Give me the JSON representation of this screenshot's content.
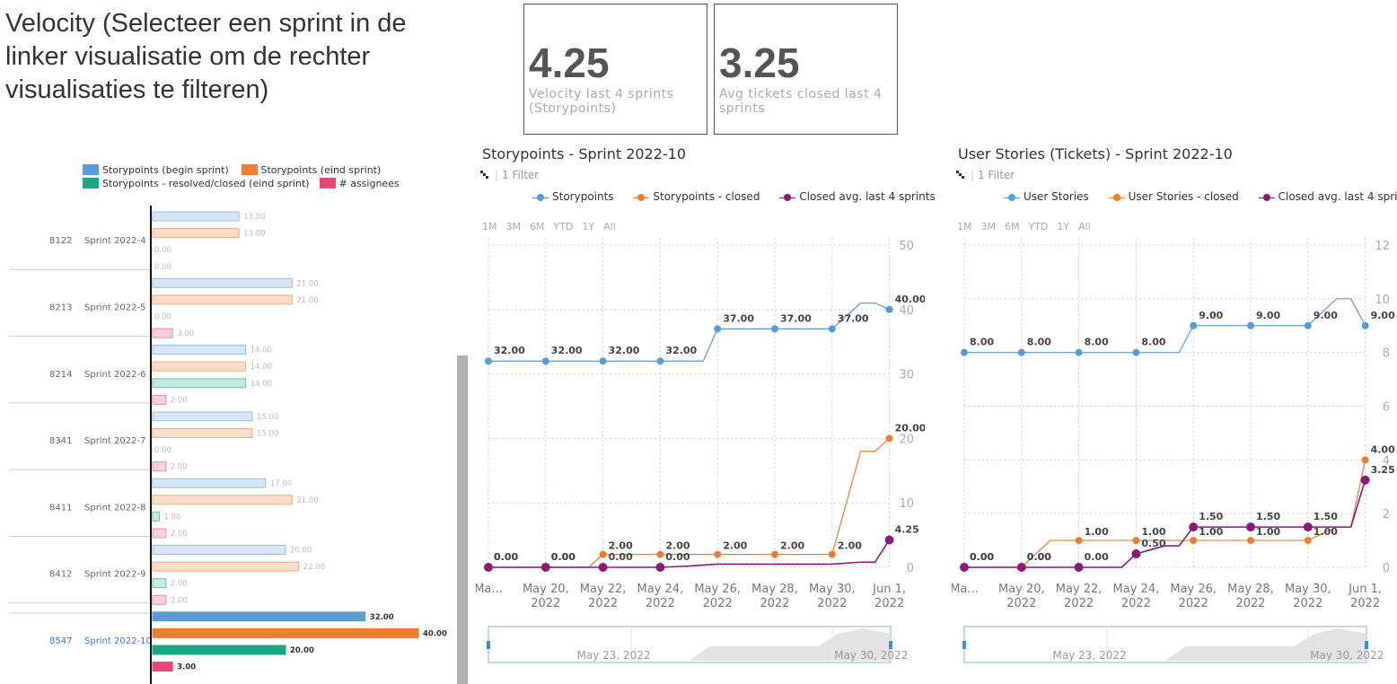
{
  "header": {
    "title": "Velocity  (Selecteer een sprint in de linker visualisatie om de rechter visualisaties te filteren)"
  },
  "kpis": [
    {
      "value": "4.25",
      "label": "Velocity last 4 sprints (Storypoints)"
    },
    {
      "value": "3.25",
      "label": "Avg tickets closed last 4 sprints"
    }
  ],
  "colors": {
    "storypoints_begin": "#5b9bd5",
    "storypoints_end": "#ed7d31",
    "resolved": "#1aa784",
    "assignees": "#e8477a",
    "closed_avg": "#8b1a7b"
  },
  "left_legend": {
    "begin": "Storypoints (begin sprint)",
    "end": "Storypoints (eind sprint)",
    "resolved": "Storypoints - resolved/closed (eind sprint)",
    "assignees": "# assignees"
  },
  "sp_chart": {
    "title": "Storypoints - Sprint 2022-10",
    "filter": "1 Filter",
    "legend": [
      "Storypoints",
      "Storypoints - closed",
      "Closed avg. last 4 sprints"
    ]
  },
  "us_chart": {
    "title": "User Stories (Tickets) - Sprint 2022-10",
    "filter": "1 Filter",
    "legend": [
      "User Stories",
      "User Stories - closed",
      "Closed avg. last 4 sprints"
    ]
  },
  "range_buttons": [
    "1M",
    "3M",
    "6M",
    "YTD",
    "1Y",
    "All"
  ],
  "chart_data": [
    {
      "type": "bar",
      "orientation": "horizontal",
      "selected": "Sprint 2022-10",
      "categories": [
        {
          "id": "8122",
          "sprint": "Sprint 2022-4"
        },
        {
          "id": "8213",
          "sprint": "Sprint 2022-5"
        },
        {
          "id": "8214",
          "sprint": "Sprint 2022-6"
        },
        {
          "id": "8341",
          "sprint": "Sprint 2022-7"
        },
        {
          "id": "8411",
          "sprint": "Sprint 2022-8"
        },
        {
          "id": "8412",
          "sprint": "Sprint 2022-9"
        },
        {
          "id": "8547",
          "sprint": "Sprint 2022-10"
        }
      ],
      "series": [
        {
          "name": "Storypoints (begin sprint)",
          "values": [
            13,
            21,
            14,
            15,
            17,
            20,
            32
          ]
        },
        {
          "name": "Storypoints (eind sprint)",
          "values": [
            13,
            21,
            14,
            15,
            21,
            22,
            40
          ]
        },
        {
          "name": "Storypoints - resolved/closed (eind sprint)",
          "values": [
            0,
            0,
            14,
            0,
            1,
            2,
            20
          ]
        },
        {
          "name": "# assignees",
          "values": [
            0,
            3,
            2,
            2,
            2,
            2,
            3
          ]
        }
      ],
      "xlim": [
        0,
        40
      ]
    },
    {
      "type": "line",
      "title": "Storypoints - Sprint 2022-10",
      "x": [
        "2022-05-18",
        "2022-05-20",
        "2022-05-22",
        "2022-05-24",
        "2022-05-25",
        "2022-05-26",
        "2022-05-28",
        "2022-05-30",
        "2022-05-31",
        "2022-06-01"
      ],
      "x_tick_labels": [
        "Ma...",
        "May 20, 2022",
        "May 22, 2022",
        "May 24, 2022",
        "May 26, 2022",
        "May 28, 2022",
        "May 30, 2022",
        "Jun 1, 2022"
      ],
      "y_ticks": [
        0,
        10,
        20,
        30,
        40,
        50
      ],
      "ylim": [
        0,
        50
      ],
      "series": [
        {
          "name": "Storypoints",
          "values": [
            32,
            32,
            32,
            32,
            32,
            37,
            37,
            37,
            41,
            40
          ],
          "labeled": [
            true,
            true,
            true,
            true,
            false,
            true,
            true,
            true,
            false,
            true
          ]
        },
        {
          "name": "Storypoints - closed",
          "values": [
            0,
            0,
            2,
            2,
            2,
            2,
            2,
            2,
            18,
            20
          ],
          "labeled": [
            true,
            true,
            true,
            true,
            false,
            true,
            true,
            true,
            false,
            true
          ]
        },
        {
          "name": "Closed avg. last 4 sprints",
          "values": [
            0,
            0,
            0,
            0,
            0.2,
            0.5,
            0.5,
            0.5,
            0.8,
            4.25
          ],
          "labeled": [
            true,
            true,
            true,
            true,
            false,
            false,
            false,
            false,
            false,
            true
          ]
        }
      ],
      "navigator_labels": [
        "May 23, 2022",
        "May 30, 2022"
      ]
    },
    {
      "type": "line",
      "title": "User Stories (Tickets) - Sprint 2022-10",
      "x": [
        "2022-05-18",
        "2022-05-20",
        "2022-05-21",
        "2022-05-22",
        "2022-05-24",
        "2022-05-25",
        "2022-05-26",
        "2022-05-28",
        "2022-05-30",
        "2022-05-31",
        "2022-06-01"
      ],
      "x_tick_labels": [
        "Ma...",
        "May 20, 2022",
        "May 22, 2022",
        "May 24, 2022",
        "May 26, 2022",
        "May 28, 2022",
        "May 30, 2022",
        "Jun 1, 2022"
      ],
      "y_ticks": [
        0,
        2,
        4,
        6,
        8,
        10,
        12
      ],
      "ylim": [
        0,
        12
      ],
      "series": [
        {
          "name": "User Stories",
          "values": [
            8,
            8,
            8,
            8,
            8,
            8,
            9,
            9,
            9,
            10,
            9
          ],
          "labeled": [
            true,
            true,
            false,
            true,
            true,
            false,
            true,
            true,
            true,
            false,
            true
          ]
        },
        {
          "name": "User Stories - closed",
          "values": [
            0,
            0,
            1,
            1,
            1,
            1,
            1,
            1,
            1,
            1.5,
            4
          ],
          "labeled": [
            true,
            true,
            false,
            true,
            true,
            false,
            true,
            true,
            true,
            false,
            true
          ]
        },
        {
          "name": "Closed avg. last 4 sprints",
          "values": [
            0,
            0,
            0,
            0,
            0.5,
            0.8,
            1.5,
            1.5,
            1.5,
            1.5,
            3.25
          ],
          "labeled": [
            true,
            true,
            false,
            true,
            true,
            false,
            true,
            true,
            true,
            false,
            true
          ]
        }
      ],
      "navigator_labels": [
        "May 23, 2022",
        "May 30, 2022"
      ]
    }
  ]
}
